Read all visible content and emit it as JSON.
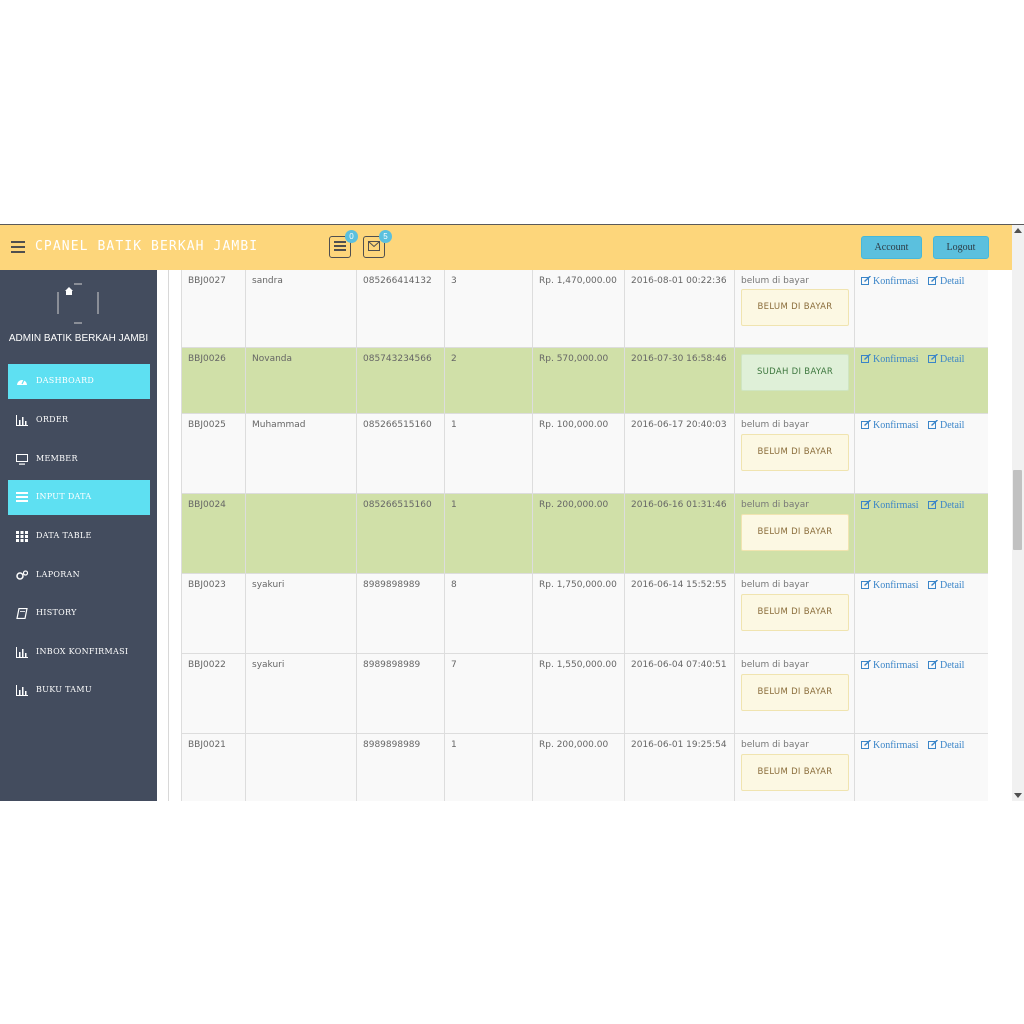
{
  "header": {
    "title": "CPANEL BATIK BERKAH JAMBI",
    "orders_badge": "0",
    "messages_badge": "5",
    "account_label": "Account",
    "logout_label": "Logout"
  },
  "sidebar": {
    "admin_name": "ADMIN BATIK BERKAH JAMBI",
    "items": [
      {
        "label": "DASHBOARD",
        "icon": "dashboard-icon",
        "active": true
      },
      {
        "label": "ORDER",
        "icon": "bar-chart-icon",
        "active": false
      },
      {
        "label": "MEMBER",
        "icon": "desktop-icon",
        "active": false
      },
      {
        "label": "INPUT DATA",
        "icon": "list-icon",
        "active": true
      },
      {
        "label": "DATA TABLE",
        "icon": "grid-icon",
        "active": false
      },
      {
        "label": "LAPORAN",
        "icon": "gears-icon",
        "active": false
      },
      {
        "label": "HISTORY",
        "icon": "book-icon",
        "active": false
      },
      {
        "label": "INBOX KONFIRMASI",
        "icon": "bar-chart-icon",
        "active": false
      },
      {
        "label": "BUKU TAMU",
        "icon": "bar-chart-icon",
        "active": false
      }
    ]
  },
  "orders": {
    "confirm_label": "Konfirmasi",
    "detail_label": "Detail",
    "rows": [
      {
        "id": "BBJ0027",
        "name": "sandra",
        "phone": "085266414132",
        "qty": "3",
        "total": "Rp. 1,470,000.00",
        "date": "2016-08-01 00:22:36",
        "status_text": "belum di bayar",
        "status_badge": "BELUM DI BAYAR",
        "paid": false
      },
      {
        "id": "BBJ0026",
        "name": "Novanda",
        "phone": "085743234566",
        "qty": "2",
        "total": "Rp. 570,000.00",
        "date": "2016-07-30 16:58:46",
        "status_text": "",
        "status_badge": "SUDAH DI BAYAR",
        "paid": true
      },
      {
        "id": "BBJ0025",
        "name": "Muhammad",
        "phone": "085266515160",
        "qty": "1",
        "total": "Rp. 100,000.00",
        "date": "2016-06-17 20:40:03",
        "status_text": "belum di bayar",
        "status_badge": "BELUM DI BAYAR",
        "paid": false
      },
      {
        "id": "BBJ0024",
        "name": "",
        "phone": "085266515160",
        "qty": "1",
        "total": "Rp. 200,000.00",
        "date": "2016-06-16 01:31:46",
        "status_text": "belum di bayar",
        "status_badge": "BELUM DI BAYAR",
        "paid": false
      },
      {
        "id": "BBJ0023",
        "name": "syakuri",
        "phone": "8989898989",
        "qty": "8",
        "total": "Rp. 1,750,000.00",
        "date": "2016-06-14 15:52:55",
        "status_text": "belum di bayar",
        "status_badge": "BELUM DI BAYAR",
        "paid": false
      },
      {
        "id": "BBJ0022",
        "name": "syakuri",
        "phone": "8989898989",
        "qty": "7",
        "total": "Rp. 1,550,000.00",
        "date": "2016-06-04 07:40:51",
        "status_text": "belum di bayar",
        "status_badge": "BELUM DI BAYAR",
        "paid": false
      },
      {
        "id": "BBJ0021",
        "name": "",
        "phone": "8989898989",
        "qty": "1",
        "total": "Rp. 200,000.00",
        "date": "2016-06-01 19:25:54",
        "status_text": "belum di bayar",
        "status_badge": "BELUM DI BAYAR",
        "paid": false
      }
    ]
  }
}
